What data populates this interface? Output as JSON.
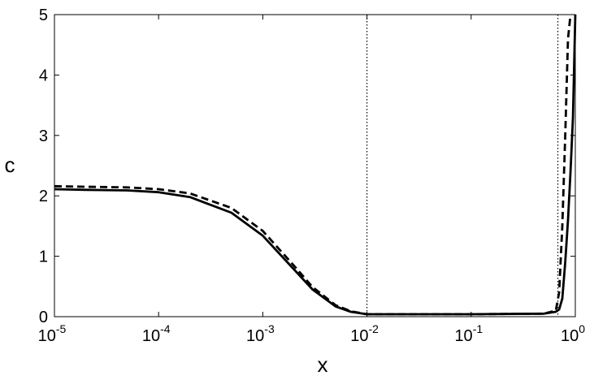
{
  "chart_data": {
    "type": "line",
    "xlabel": "x",
    "ylabel": "c",
    "xscale": "log",
    "x": [
      1e-05,
      2e-05,
      5e-05,
      0.0001,
      0.0002,
      0.0005,
      0.001,
      0.002,
      0.003,
      0.005,
      0.007,
      0.01,
      0.1,
      0.5,
      0.65,
      0.7,
      0.75,
      0.8,
      0.85,
      0.9,
      0.95,
      1
    ],
    "series": [
      {
        "color": "#000000",
        "dash": "solid",
        "values": [
          2.11,
          2.1,
          2.09,
          2.06,
          1.98,
          1.72,
          1.34,
          0.78,
          0.45,
          0.17,
          0.08,
          0.04,
          0.04,
          0.05,
          0.08,
          0.12,
          0.3,
          0.9,
          1.6,
          2.4,
          3.3,
          5
        ]
      },
      {
        "color": "#000000",
        "dash": "dashed",
        "values": [
          2.16,
          2.15,
          2.14,
          2.11,
          2.04,
          1.8,
          1.42,
          0.84,
          0.49,
          0.19,
          0.09,
          0.04,
          0.04,
          0.05,
          0.1,
          0.4,
          1.5,
          3.0,
          4.6,
          5,
          null,
          null
        ]
      }
    ],
    "vlines": [
      0.01,
      0.68
    ],
    "xlim": [
      1e-05,
      1
    ],
    "ylim": [
      0,
      5
    ],
    "xticks": [
      {
        "value": 1e-05,
        "label": "10",
        "exponent": "-5"
      },
      {
        "value": 0.0001,
        "label": "10",
        "exponent": "-4"
      },
      {
        "value": 0.001,
        "label": "10",
        "exponent": "-3"
      },
      {
        "value": 0.01,
        "label": "10",
        "exponent": "-2"
      },
      {
        "value": 0.1,
        "label": "10",
        "exponent": "-1"
      },
      {
        "value": 1,
        "label": "10",
        "exponent": "0"
      }
    ],
    "yticks": [
      0,
      1,
      2,
      3,
      4,
      5
    ]
  }
}
